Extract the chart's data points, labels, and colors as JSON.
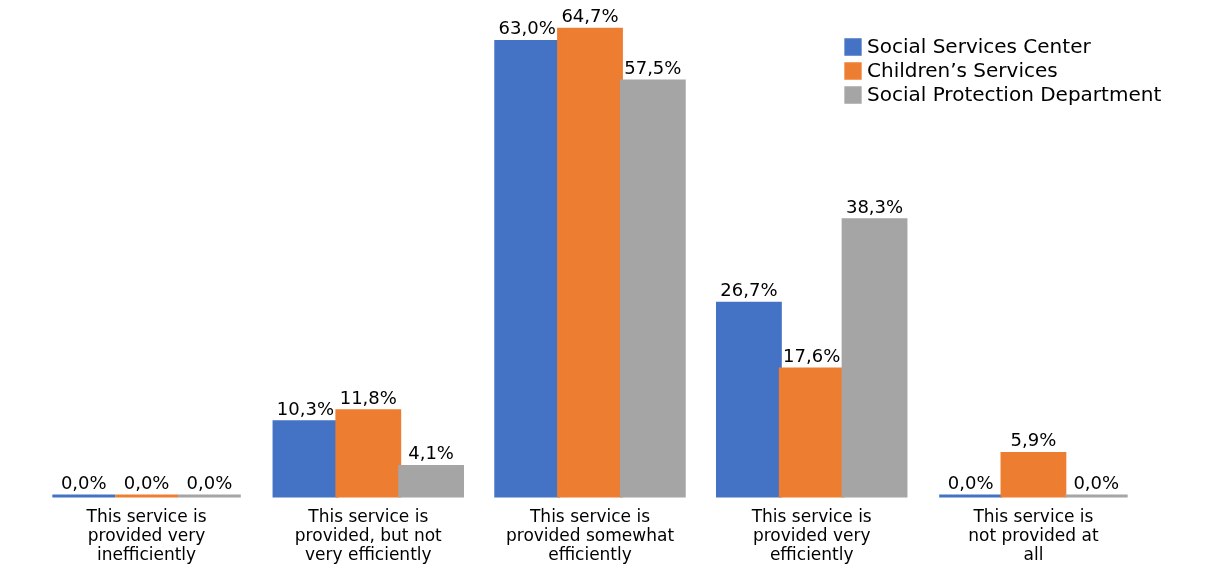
{
  "chart_data": {
    "type": "bar",
    "categories": [
      "This service is provided very inefficiently",
      "This service is provided, but not very efficiently",
      "This service is provided somewhat efficiently",
      "This service is provided very efficiently",
      "This service is not provided at all"
    ],
    "series": [
      {
        "name": "Social Services Center",
        "color": "#4472c4",
        "values": [
          0.0,
          10.3,
          63.0,
          26.7,
          0.0
        ],
        "value_labels": [
          "0,0%",
          "10,3%",
          "63,0%",
          "26,7%",
          "0,0%"
        ]
      },
      {
        "name": "Children’s Services",
        "color": "#ed7d31",
        "values": [
          0.0,
          11.8,
          64.7,
          17.6,
          5.9
        ],
        "value_labels": [
          "0,0%",
          "11,8%",
          "64,7%",
          "17,6%",
          "5,9%"
        ]
      },
      {
        "name": "Social Protection Department",
        "color": "#a5a5a5",
        "values": [
          0.0,
          4.1,
          57.5,
          38.3,
          0.0
        ],
        "value_labels": [
          "0,0%",
          "4,1%",
          "57,5%",
          "38,3%",
          "0,0%"
        ]
      }
    ],
    "legend": "top right",
    "grid": false
  }
}
